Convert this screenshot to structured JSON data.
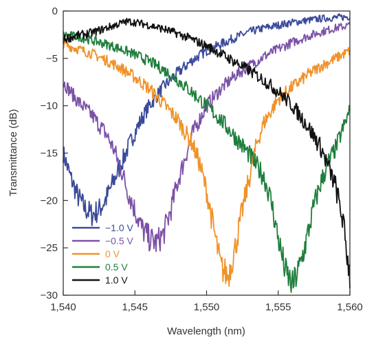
{
  "chart_data": {
    "type": "line",
    "xlabel": "Wavelength (nm)",
    "ylabel": "Transmittance (dB)",
    "xlim": [
      1540,
      1560
    ],
    "ylim": [
      -30,
      0
    ],
    "x_ticks": [
      1540,
      1545,
      1550,
      1555,
      1560
    ],
    "x_tick_labels": [
      "1,540",
      "1,545",
      "1,550",
      "1,555",
      "1,560"
    ],
    "y_ticks": [
      0,
      -5,
      -10,
      -15,
      -20,
      -25,
      -30
    ],
    "y_tick_labels": [
      "0",
      "−5",
      "−10",
      "−15",
      "−20",
      "−25",
      "−30"
    ],
    "grid": false,
    "legend_position": "bottom-left",
    "series": [
      {
        "name": "−1.0 V",
        "color": "#3a4a9a",
        "x": [
          1540,
          1540.5,
          1541,
          1541.5,
          1542,
          1542.5,
          1543,
          1543.5,
          1544,
          1544.5,
          1545,
          1545.5,
          1546,
          1547,
          1548,
          1549,
          1550,
          1551,
          1552,
          1553,
          1554,
          1555,
          1556,
          1557,
          1558,
          1559,
          1560
        ],
        "y": [
          -15,
          -17.5,
          -19.5,
          -20.8,
          -21.5,
          -21,
          -19.8,
          -18,
          -16.3,
          -14.5,
          -12.8,
          -11.3,
          -10,
          -8,
          -6.5,
          -5.2,
          -4.2,
          -3.5,
          -2.8,
          -2.2,
          -1.8,
          -1.5,
          -1.2,
          -1,
          -0.8,
          -0.7,
          -0.6
        ]
      },
      {
        "name": "−0.5 V",
        "color": "#7b52a6",
        "x": [
          1540,
          1541,
          1542,
          1543,
          1543.5,
          1544,
          1544.5,
          1545,
          1545.5,
          1546,
          1546.5,
          1547,
          1547.5,
          1548,
          1548.5,
          1549,
          1550,
          1551,
          1552,
          1553,
          1554,
          1555,
          1556,
          1557,
          1558,
          1559,
          1560
        ],
        "y": [
          -7.5,
          -9.5,
          -11,
          -13,
          -14.5,
          -16.5,
          -19,
          -21,
          -23,
          -24,
          -24.5,
          -23.5,
          -21,
          -18,
          -15.5,
          -13,
          -10,
          -8.2,
          -6.8,
          -5.8,
          -4.8,
          -4,
          -3.3,
          -2.7,
          -2.2,
          -1.8,
          -1.5
        ]
      },
      {
        "name": "0 V",
        "color": "#f0922a",
        "x": [
          1540,
          1541,
          1542,
          1543,
          1544,
          1545,
          1546,
          1547,
          1548,
          1549,
          1549.5,
          1550,
          1550.5,
          1551,
          1551.5,
          1552,
          1552.5,
          1553,
          1553.5,
          1554,
          1555,
          1556,
          1557,
          1558,
          1559,
          1560
        ],
        "y": [
          -3.5,
          -4,
          -4.5,
          -5.2,
          -6,
          -7,
          -8.2,
          -9.8,
          -11.5,
          -14,
          -16,
          -19,
          -23,
          -27,
          -28,
          -25,
          -21,
          -17.5,
          -14,
          -11.8,
          -9.3,
          -8,
          -6.8,
          -5.8,
          -5,
          -4.2
        ]
      },
      {
        "name": "0.5 V",
        "color": "#1e7e3c",
        "x": [
          1540,
          1541,
          1542,
          1543,
          1544,
          1545,
          1546,
          1547,
          1548,
          1549,
          1550,
          1551,
          1552,
          1553,
          1554,
          1554.5,
          1555,
          1555.5,
          1556,
          1556.5,
          1557,
          1557.5,
          1558,
          1558.5,
          1559,
          1559.5,
          1560
        ],
        "y": [
          -2.5,
          -2.7,
          -3.1,
          -3.5,
          -4,
          -4.6,
          -5.3,
          -6.2,
          -7.3,
          -8.6,
          -10,
          -11.5,
          -13.3,
          -15.2,
          -17.5,
          -20,
          -24,
          -27.5,
          -29,
          -27,
          -24,
          -20.5,
          -18,
          -16,
          -14.5,
          -12.5,
          -10.5
        ]
      },
      {
        "name": "1.0 V",
        "color": "#111111",
        "x": [
          1540,
          1541,
          1542,
          1543,
          1544,
          1544.5,
          1545,
          1546,
          1547,
          1548,
          1549,
          1550,
          1551,
          1552,
          1553,
          1554,
          1555,
          1556,
          1557,
          1558,
          1559,
          1559.5,
          1560
        ],
        "y": [
          -3,
          -2.6,
          -2.3,
          -1.8,
          -1.3,
          -1.1,
          -1.2,
          -1.5,
          -1.9,
          -2.4,
          -3,
          -3.7,
          -4.5,
          -5.4,
          -6.3,
          -7.3,
          -8.5,
          -10,
          -12,
          -14.5,
          -18.5,
          -22,
          -28
        ]
      }
    ]
  }
}
